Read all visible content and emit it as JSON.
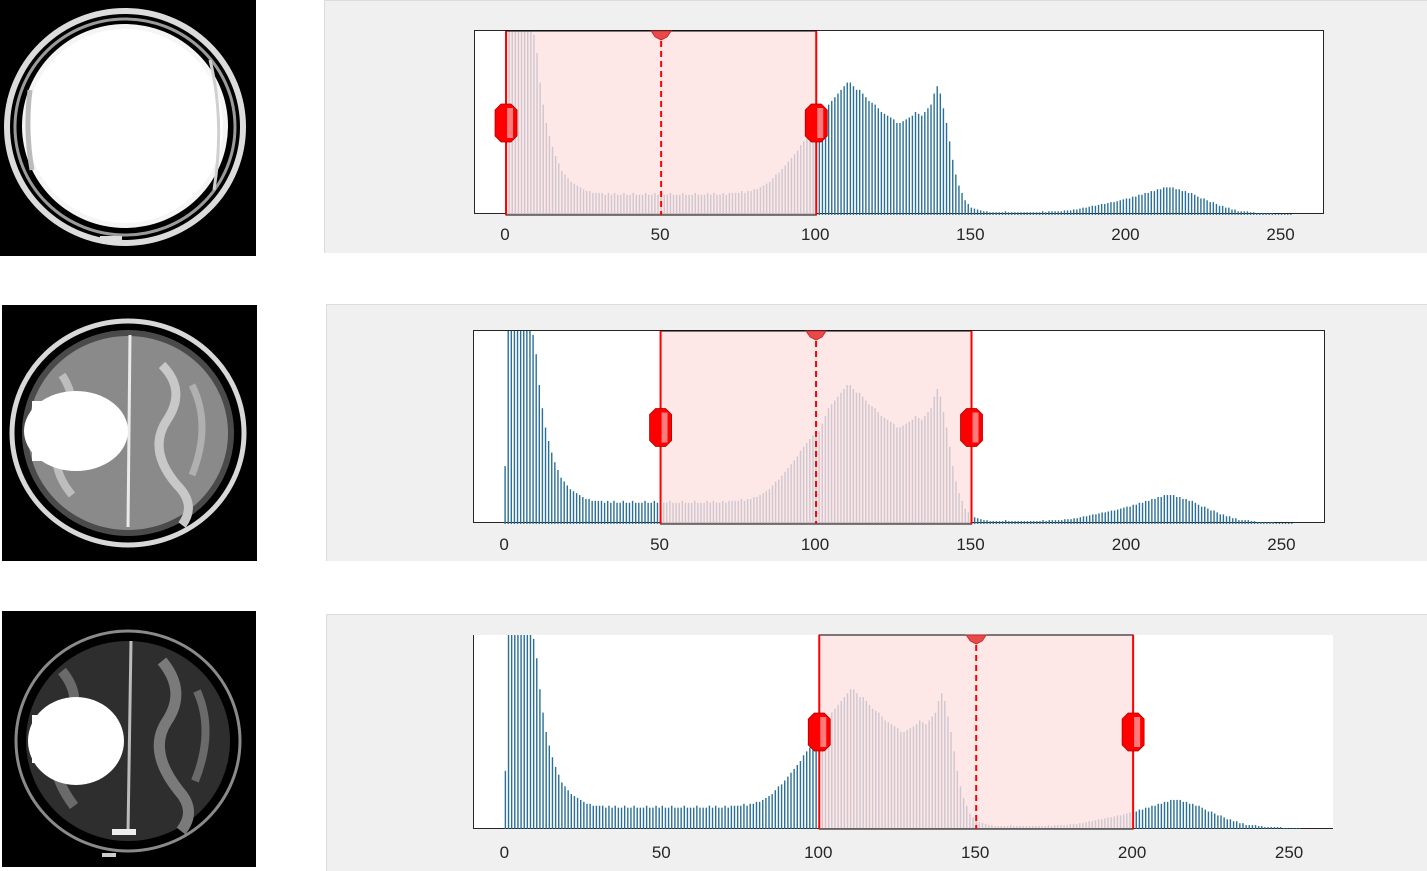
{
  "colors": {
    "bar": "#2a6f97",
    "window_fill": "#fde0e0",
    "window_edge": "#ff0000",
    "handle": "#ff0000",
    "panel_bg": "#f0f0f0"
  },
  "icons": {
    "handle": "window-level-handle-icon",
    "center": "window-center-marker-icon"
  },
  "rows": [
    {
      "image_name": "brain-mri-window-0-100",
      "chart": {
        "type": "bar",
        "xlim": [
          -10,
          264
        ],
        "ticks": [
          "0",
          "50",
          "100",
          "150",
          "200",
          "250"
        ],
        "window": {
          "low": 0,
          "high": 100,
          "center": 50
        }
      }
    },
    {
      "image_name": "brain-mri-window-50-150",
      "chart": {
        "type": "bar",
        "xlim": [
          -10,
          264
        ],
        "ticks": [
          "0",
          "50",
          "100",
          "150",
          "200",
          "250"
        ],
        "window": {
          "low": 50,
          "high": 150,
          "center": 100
        }
      }
    },
    {
      "image_name": "brain-mri-window-100-200",
      "chart": {
        "type": "bar",
        "xlim": [
          -10,
          264
        ],
        "ticks": [
          "0",
          "50",
          "100",
          "150",
          "200",
          "250"
        ],
        "window": {
          "low": 100,
          "high": 200,
          "center": 150
        }
      }
    }
  ],
  "chart_data": {
    "type": "bar",
    "title": "",
    "xlabel": "",
    "ylabel": "",
    "xlim": [
      -10,
      264
    ],
    "grid": false,
    "x_range": [
      0,
      255
    ],
    "values": [
      0.3,
      1.0,
      1.0,
      1.0,
      1.0,
      1.0,
      1.0,
      1.0,
      1.0,
      0.98,
      0.88,
      0.72,
      0.6,
      0.5,
      0.43,
      0.37,
      0.32,
      0.28,
      0.24,
      0.22,
      0.2,
      0.18,
      0.17,
      0.16,
      0.15,
      0.14,
      0.13,
      0.13,
      0.12,
      0.12,
      0.12,
      0.12,
      0.11,
      0.12,
      0.11,
      0.12,
      0.11,
      0.11,
      0.12,
      0.11,
      0.11,
      0.12,
      0.11,
      0.11,
      0.11,
      0.12,
      0.11,
      0.11,
      0.12,
      0.11,
      0.12,
      0.11,
      0.11,
      0.12,
      0.11,
      0.11,
      0.11,
      0.12,
      0.11,
      0.11,
      0.11,
      0.12,
      0.11,
      0.11,
      0.11,
      0.12,
      0.11,
      0.12,
      0.11,
      0.11,
      0.12,
      0.11,
      0.12,
      0.12,
      0.12,
      0.12,
      0.13,
      0.12,
      0.13,
      0.13,
      0.14,
      0.14,
      0.15,
      0.16,
      0.17,
      0.18,
      0.2,
      0.22,
      0.23,
      0.25,
      0.27,
      0.29,
      0.31,
      0.33,
      0.35,
      0.38,
      0.4,
      0.42,
      0.44,
      0.46,
      0.46,
      0.48,
      0.52,
      0.56,
      0.6,
      0.62,
      0.64,
      0.66,
      0.68,
      0.7,
      0.72,
      0.72,
      0.7,
      0.68,
      0.68,
      0.66,
      0.64,
      0.62,
      0.61,
      0.6,
      0.58,
      0.56,
      0.55,
      0.54,
      0.53,
      0.52,
      0.5,
      0.5,
      0.51,
      0.52,
      0.53,
      0.54,
      0.56,
      0.55,
      0.54,
      0.56,
      0.58,
      0.6,
      0.66,
      0.7,
      0.66,
      0.58,
      0.5,
      0.4,
      0.3,
      0.22,
      0.16,
      0.12,
      0.08,
      0.06,
      0.04,
      0.035,
      0.03,
      0.025,
      0.02,
      0.02,
      0.015,
      0.015,
      0.015,
      0.015,
      0.015,
      0.02,
      0.015,
      0.015,
      0.015,
      0.015,
      0.015,
      0.015,
      0.015,
      0.015,
      0.015,
      0.015,
      0.015,
      0.02,
      0.015,
      0.02,
      0.02,
      0.02,
      0.02,
      0.02,
      0.025,
      0.025,
      0.025,
      0.03,
      0.03,
      0.035,
      0.04,
      0.04,
      0.045,
      0.05,
      0.05,
      0.055,
      0.06,
      0.06,
      0.065,
      0.07,
      0.07,
      0.075,
      0.08,
      0.085,
      0.09,
      0.09,
      0.1,
      0.1,
      0.11,
      0.11,
      0.12,
      0.12,
      0.13,
      0.13,
      0.14,
      0.14,
      0.15,
      0.15,
      0.15,
      0.15,
      0.14,
      0.14,
      0.13,
      0.13,
      0.12,
      0.12,
      0.11,
      0.1,
      0.09,
      0.09,
      0.08,
      0.07,
      0.07,
      0.06,
      0.05,
      0.05,
      0.04,
      0.04,
      0.03,
      0.03,
      0.02,
      0.02,
      0.02,
      0.02,
      0.015,
      0.015,
      0.01,
      0.01,
      0.01,
      0.01,
      0.01,
      0.01,
      0.005,
      0.005,
      0.005,
      0.005,
      0.005,
      0.005
    ]
  }
}
